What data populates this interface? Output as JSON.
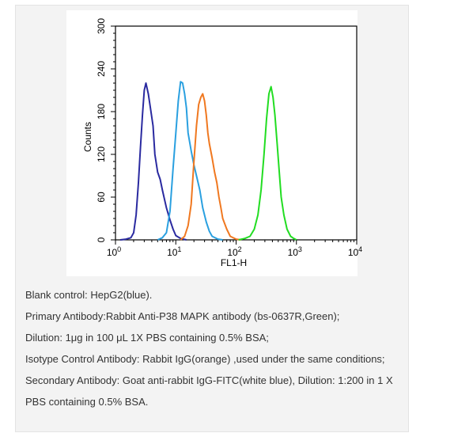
{
  "chart_data": {
    "type": "histogram",
    "xlabel": "FL1-H",
    "ylabel": "Counts",
    "x_scale": "log",
    "xlim": [
      1,
      10000
    ],
    "ylim": [
      0,
      300
    ],
    "x_ticks": [
      {
        "value": 1,
        "base": "10",
        "exp": "0"
      },
      {
        "value": 10,
        "base": "10",
        "exp": "1"
      },
      {
        "value": 100,
        "base": "10",
        "exp": "2"
      },
      {
        "value": 1000,
        "base": "10",
        "exp": "3"
      },
      {
        "value": 10000,
        "base": "10",
        "exp": "4"
      }
    ],
    "y_ticks": [
      {
        "value": 0,
        "label": "0"
      },
      {
        "value": 60,
        "label": "60"
      },
      {
        "value": 120,
        "label": "120"
      },
      {
        "value": 180,
        "label": "180"
      },
      {
        "value": 240,
        "label": "240"
      },
      {
        "value": 300,
        "label": "300"
      }
    ],
    "grid": false,
    "series": [
      {
        "color": "#2a2aa0",
        "points": [
          [
            1.2,
            0
          ],
          [
            1.5,
            1
          ],
          [
            1.8,
            3
          ],
          [
            2.0,
            10
          ],
          [
            2.2,
            35
          ],
          [
            2.4,
            80
          ],
          [
            2.6,
            130
          ],
          [
            2.8,
            175
          ],
          [
            3.0,
            210
          ],
          [
            3.2,
            220
          ],
          [
            3.5,
            205
          ],
          [
            3.8,
            185
          ],
          [
            4.2,
            160
          ],
          [
            4.5,
            120
          ],
          [
            5.0,
            95
          ],
          [
            5.5,
            85
          ],
          [
            6.0,
            70
          ],
          [
            7.0,
            45
          ],
          [
            8.0,
            28
          ],
          [
            9.0,
            15
          ],
          [
            10.0,
            6
          ],
          [
            12,
            2
          ],
          [
            15,
            0
          ]
        ]
      },
      {
        "color": "#2aa0e0",
        "points": [
          [
            5,
            0
          ],
          [
            6,
            3
          ],
          [
            7,
            10
          ],
          [
            8,
            40
          ],
          [
            9,
            100
          ],
          [
            10,
            150
          ],
          [
            11,
            195
          ],
          [
            12,
            222
          ],
          [
            13,
            220
          ],
          [
            14,
            205
          ],
          [
            15,
            185
          ],
          [
            16,
            150
          ],
          [
            18,
            125
          ],
          [
            20,
            105
          ],
          [
            22,
            90
          ],
          [
            25,
            70
          ],
          [
            28,
            45
          ],
          [
            32,
            25
          ],
          [
            36,
            12
          ],
          [
            40,
            5
          ],
          [
            50,
            1
          ],
          [
            60,
            0
          ]
        ]
      },
      {
        "color": "#f07820",
        "points": [
          [
            12,
            0
          ],
          [
            14,
            5
          ],
          [
            16,
            20
          ],
          [
            18,
            50
          ],
          [
            20,
            110
          ],
          [
            22,
            160
          ],
          [
            24,
            190
          ],
          [
            26,
            200
          ],
          [
            28,
            205
          ],
          [
            30,
            195
          ],
          [
            32,
            175
          ],
          [
            34,
            150
          ],
          [
            36,
            135
          ],
          [
            40,
            115
          ],
          [
            44,
            95
          ],
          [
            48,
            80
          ],
          [
            52,
            60
          ],
          [
            56,
            45
          ],
          [
            60,
            30
          ],
          [
            70,
            15
          ],
          [
            80,
            5
          ],
          [
            100,
            1
          ],
          [
            120,
            0
          ]
        ]
      },
      {
        "color": "#22dd22",
        "points": [
          [
            110,
            0
          ],
          [
            140,
            2
          ],
          [
            170,
            5
          ],
          [
            200,
            15
          ],
          [
            230,
            35
          ],
          [
            260,
            70
          ],
          [
            290,
            120
          ],
          [
            320,
            170
          ],
          [
            350,
            205
          ],
          [
            380,
            215
          ],
          [
            410,
            200
          ],
          [
            440,
            175
          ],
          [
            480,
            135
          ],
          [
            520,
            95
          ],
          [
            560,
            60
          ],
          [
            620,
            35
          ],
          [
            700,
            15
          ],
          [
            800,
            5
          ],
          [
            900,
            2
          ],
          [
            1000,
            0
          ]
        ]
      }
    ]
  },
  "caption": {
    "lines": [
      "Blank control: HepG2(blue).",
      "Primary Antibody:Rabbit Anti-P38 MAPK antibody (bs-0637R,Green);",
      "Dilution: 1μg in 100 μL 1X PBS containing 0.5% BSA;",
      "Isotype Control Antibody: Rabbit IgG(orange) ,used under the same conditions;",
      "Secondary Antibody: Goat anti-rabbit IgG-FITC(white blue), Dilution: 1:200 in 1 X PBS containing 0.5% BSA."
    ]
  }
}
